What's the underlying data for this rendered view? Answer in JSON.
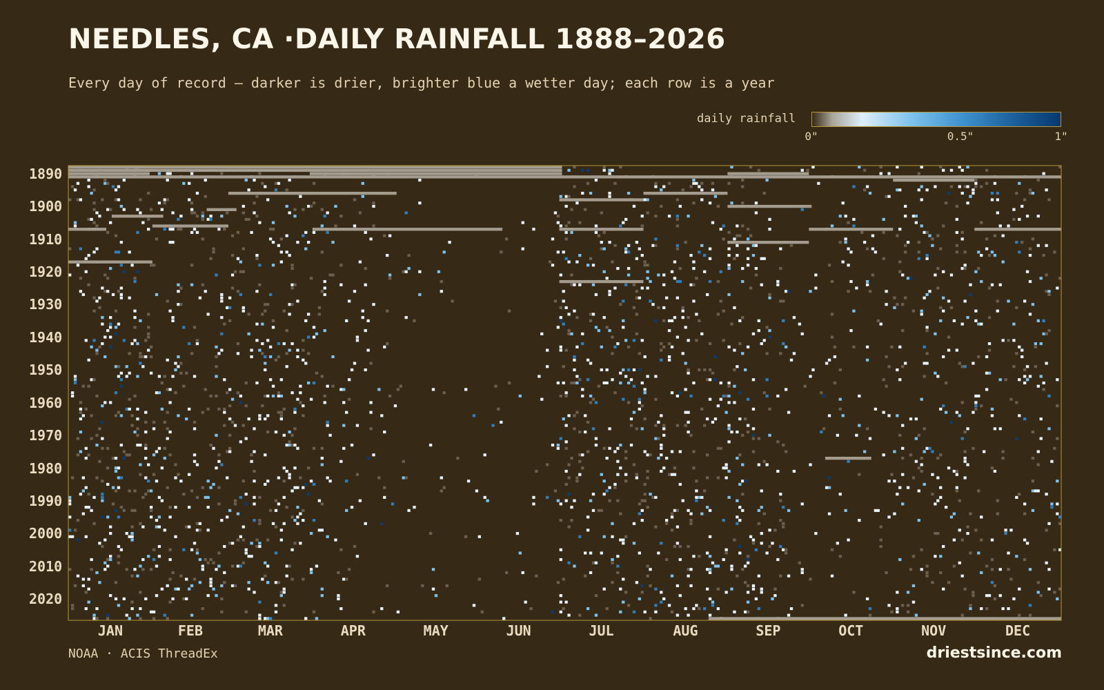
{
  "header": {
    "title": "NEEDLES, CA ·DAILY RAINFALL 1888–2026",
    "subtitle": "Every day of record — darker is drier, brighter blue a wetter day; each row is a year"
  },
  "legend": {
    "label": "daily rainfall",
    "ticks": [
      "0\"",
      "0.5\"",
      "1\""
    ],
    "tick_values": [
      0,
      0.5,
      1
    ]
  },
  "footer": {
    "source": "NOAA · ACIS ThreadEx",
    "brand": "driestsince.com"
  },
  "colors": {
    "background": "#362915",
    "frame": "#b8963a",
    "missing": "#a39c8f",
    "trace": "#6a5f50",
    "light_rain": "#e8f3fb",
    "moderate_rain": "#7cc2ec",
    "heavy_rain": "#2f7fbf",
    "extreme_rain": "#0a3c73"
  },
  "chart_data": {
    "type": "heatmap",
    "title": "NEEDLES, CA ·DAILY RAINFALL 1888–2026",
    "subtitle": "Every day of record — darker is drier, brighter blue a wetter day; each row is a year",
    "x_axis": {
      "unit": "day of year",
      "range": [
        1,
        366
      ],
      "tick_labels": [
        "JAN",
        "FEB",
        "MAR",
        "APR",
        "MAY",
        "JUN",
        "JUL",
        "AUG",
        "SEP",
        "OCT",
        "NOV",
        "DEC"
      ],
      "month_start_days": [
        1,
        32,
        60,
        91,
        121,
        152,
        182,
        213,
        244,
        274,
        305,
        335
      ]
    },
    "y_axis": {
      "unit": "year",
      "range": [
        1888,
        2026
      ],
      "tick_labels": [
        "1890",
        "1900",
        "1910",
        "1920",
        "1930",
        "1940",
        "1950",
        "1960",
        "1970",
        "1980",
        "1990",
        "2000",
        "2010",
        "2020"
      ],
      "tick_values": [
        1890,
        1900,
        1910,
        1920,
        1930,
        1940,
        1950,
        1960,
        1970,
        1980,
        1990,
        2000,
        2010,
        2020
      ]
    },
    "color_scale": {
      "label": "daily rainfall",
      "unit": "inches",
      "range": [
        0,
        1
      ]
    },
    "missing_data_runs": [
      {
        "year": 1888,
        "start_day": 1,
        "end_day": 182
      },
      {
        "year": 1889,
        "start_day": 1,
        "end_day": 182
      },
      {
        "year": 1890,
        "start_day": 1,
        "end_day": 30
      },
      {
        "year": 1890,
        "start_day": 90,
        "end_day": 182
      },
      {
        "year": 1890,
        "start_day": 244,
        "end_day": 273
      },
      {
        "year": 1891,
        "start_day": 1,
        "end_day": 366
      },
      {
        "year": 1892,
        "start_day": 305,
        "end_day": 334
      },
      {
        "year": 1896,
        "start_day": 60,
        "end_day": 121
      },
      {
        "year": 1896,
        "start_day": 213,
        "end_day": 243
      },
      {
        "year": 1898,
        "start_day": 182,
        "end_day": 212
      },
      {
        "year": 1900,
        "start_day": 244,
        "end_day": 274
      },
      {
        "year": 1901,
        "start_day": 52,
        "end_day": 62
      },
      {
        "year": 1903,
        "start_day": 17,
        "end_day": 35
      },
      {
        "year": 1907,
        "start_day": 1,
        "end_day": 14
      },
      {
        "year": 1907,
        "start_day": 91,
        "end_day": 160
      },
      {
        "year": 1907,
        "start_day": 182,
        "end_day": 212
      },
      {
        "year": 1907,
        "start_day": 274,
        "end_day": 304
      },
      {
        "year": 1907,
        "start_day": 335,
        "end_day": 366
      },
      {
        "year": 1906,
        "start_day": 32,
        "end_day": 59
      },
      {
        "year": 1911,
        "start_day": 244,
        "end_day": 273
      },
      {
        "year": 1917,
        "start_day": 1,
        "end_day": 31
      },
      {
        "year": 1923,
        "start_day": 182,
        "end_day": 212
      },
      {
        "year": 1977,
        "start_day": 280,
        "end_day": 296
      },
      {
        "year": 2026,
        "start_day": 237,
        "end_day": 366
      }
    ]
  }
}
